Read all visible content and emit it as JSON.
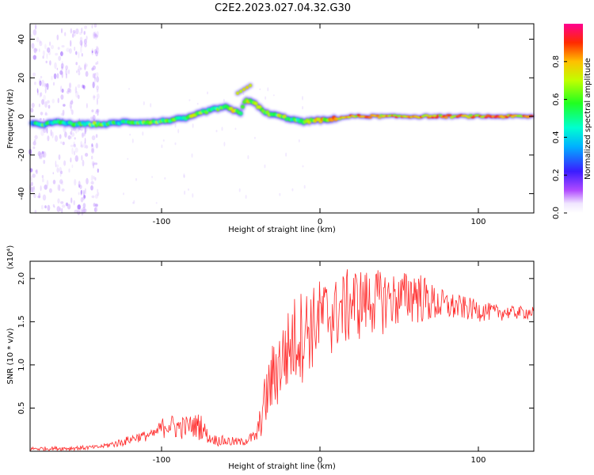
{
  "title": "C2E2.2023.027.04.32.G30",
  "chart_data": [
    {
      "type": "heatmap",
      "xlabel": "Height of straight line (km)",
      "ylabel": "Frequency (Hz)",
      "xlim": [
        -183,
        135
      ],
      "ylim": [
        -50,
        48
      ],
      "xticks": [
        -100,
        0,
        100
      ],
      "xtick_labels": [
        "-100",
        "0",
        "100"
      ],
      "yticks": [
        -40,
        -20,
        0,
        20,
        40
      ],
      "ytick_labels": [
        "-40",
        "-20",
        "0",
        "20",
        "40"
      ],
      "colorbar": {
        "label": "Normalized spectral amplitude",
        "range": [
          0,
          1
        ],
        "ticks": [
          0.0,
          0.2,
          0.4,
          0.6,
          0.8
        ],
        "tick_labels": [
          "0.0",
          "0.2",
          "0.4",
          "0.6",
          "0.8"
        ],
        "colormap": "rainbow"
      },
      "ridge": {
        "x": [
          -183,
          -175,
          -165,
          -155,
          -145,
          -135,
          -125,
          -115,
          -105,
          -95,
          -85,
          -80,
          -75,
          -70,
          -65,
          -60,
          -55,
          -50,
          -47,
          -45,
          -42,
          -40,
          -35,
          -30,
          -25,
          -20,
          -15,
          -10,
          -5,
          0,
          5,
          10,
          20,
          40,
          60,
          80,
          100,
          135
        ],
        "y": [
          -4,
          -4,
          -3,
          -4,
          -4,
          -4,
          -3,
          -3,
          -3,
          -2,
          -1,
          0,
          2,
          3,
          4,
          5,
          3,
          2,
          9,
          8,
          7,
          6,
          2,
          1,
          0,
          -1,
          -2,
          -3,
          -2,
          -2,
          -2,
          -1,
          0,
          0,
          0,
          0,
          0,
          0
        ],
        "amplitude": [
          0.3,
          0.5,
          0.4,
          0.5,
          0.6,
          0.5,
          0.4,
          0.5,
          0.6,
          0.5,
          0.6,
          0.7,
          0.6,
          0.5,
          0.6,
          0.7,
          0.8,
          0.7,
          0.8,
          0.8,
          0.7,
          0.6,
          0.7,
          0.6,
          0.7,
          0.6,
          0.5,
          0.6,
          0.7,
          0.8,
          0.8,
          0.9,
          0.9,
          0.9,
          0.9,
          0.9,
          0.9,
          0.9
        ]
      },
      "secondary_ridge": {
        "x": [
          -52,
          -50,
          -48,
          -46,
          -44
        ],
        "y": [
          12,
          13,
          14,
          15,
          16
        ]
      }
    },
    {
      "type": "line",
      "xlabel": "Height of straight line (km)",
      "ylabel": "SNR (10 * v/v)",
      "y_multiplier": "(x10⁴)",
      "xlim": [
        -183,
        135
      ],
      "ylim": [
        0,
        2.2
      ],
      "xticks": [
        -100,
        0,
        100
      ],
      "xtick_labels": [
        "-100",
        "0",
        "100"
      ],
      "yticks": [
        0.5,
        1.0,
        1.5,
        2.0
      ],
      "ytick_labels": [
        "0.5",
        "1.0",
        "1.5",
        "2.0"
      ],
      "color": "#ff2a2a",
      "envelope": {
        "x": [
          -183,
          -160,
          -140,
          -125,
          -115,
          -105,
          -97,
          -90,
          -80,
          -75,
          -70,
          -60,
          -50,
          -40,
          -35,
          -30,
          -25,
          -20,
          -15,
          -10,
          -5,
          0,
          10,
          20,
          30,
          40,
          50,
          60,
          70,
          80,
          90,
          100,
          110,
          120,
          135
        ],
        "low": [
          0.0,
          0.0,
          0.02,
          0.05,
          0.1,
          0.12,
          0.15,
          0.12,
          0.15,
          0.12,
          0.08,
          0.04,
          0.05,
          0.08,
          0.2,
          0.35,
          0.5,
          0.6,
          0.7,
          0.8,
          0.9,
          1.0,
          1.1,
          1.2,
          1.3,
          1.35,
          1.4,
          1.45,
          1.45,
          1.48,
          1.5,
          1.5,
          1.5,
          1.52,
          1.52
        ],
        "high": [
          0.05,
          0.06,
          0.07,
          0.15,
          0.22,
          0.25,
          0.45,
          0.4,
          0.42,
          0.45,
          0.2,
          0.18,
          0.15,
          0.25,
          0.85,
          1.25,
          1.45,
          1.65,
          1.85,
          1.9,
          1.9,
          2.0,
          2.0,
          2.15,
          2.1,
          2.1,
          2.05,
          2.15,
          1.95,
          1.85,
          1.8,
          1.75,
          1.7,
          1.68,
          1.68
        ]
      }
    }
  ]
}
